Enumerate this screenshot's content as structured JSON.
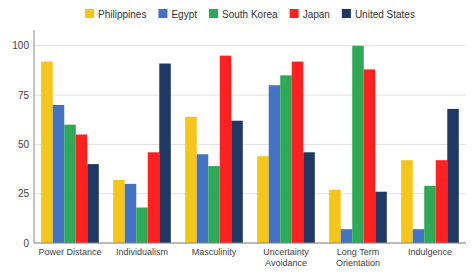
{
  "chart_data": {
    "type": "bar",
    "categories": [
      "Power Distance",
      "Individualism",
      "Masculinity",
      "Uncertainty\nAvoidance",
      "Long Term\nOrientation",
      "Indulgence"
    ],
    "series": [
      {
        "name": "Philippines",
        "color": "#F5C518",
        "values": [
          92,
          32,
          64,
          44,
          27,
          42
        ]
      },
      {
        "name": "Egypt",
        "color": "#4472C4",
        "values": [
          70,
          30,
          45,
          80,
          7,
          7
        ]
      },
      {
        "name": "South Korea",
        "color": "#2EAA57",
        "values": [
          60,
          18,
          39,
          85,
          100,
          29
        ]
      },
      {
        "name": "Japan",
        "color": "#FF2020",
        "values": [
          55,
          46,
          95,
          92,
          88,
          42
        ]
      },
      {
        "name": "United States",
        "color": "#1F3864",
        "values": [
          40,
          91,
          62,
          46,
          26,
          68
        ]
      }
    ],
    "ylim": [
      0,
      108
    ],
    "yticks": [
      0,
      25,
      50,
      75,
      100
    ],
    "grid": true,
    "legend": "top"
  }
}
